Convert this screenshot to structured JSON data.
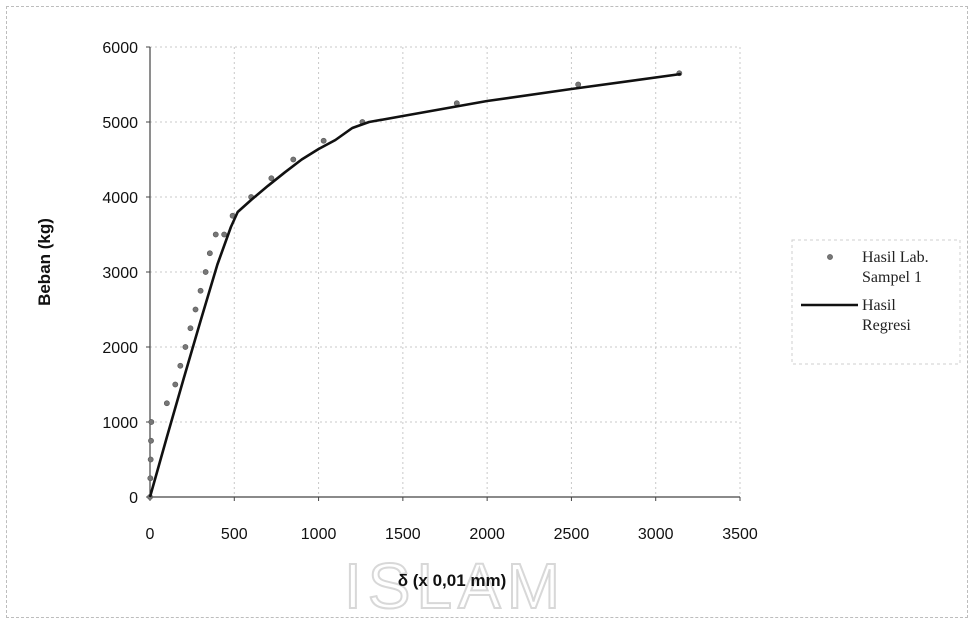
{
  "chart_data": {
    "type": "scatter",
    "title": "",
    "xlabel": "δ (x 0,01 mm)",
    "ylabel": "Beban (kg)",
    "xlim": [
      0,
      3500
    ],
    "ylim": [
      0,
      6000
    ],
    "x_ticks": [
      "0",
      "500",
      "1000",
      "1500",
      "2000",
      "2500",
      "3000",
      "3500"
    ],
    "y_ticks": [
      "0",
      "1000",
      "2000",
      "3000",
      "4000",
      "5000",
      "6000"
    ],
    "grid": true,
    "legend_position": "right",
    "series": [
      {
        "name": "Hasil Lab. Sampel 1",
        "type": "scatter",
        "color": "#777777",
        "x": [
          0,
          2,
          4,
          6,
          8,
          100,
          150,
          180,
          210,
          240,
          270,
          300,
          330,
          355,
          390,
          440,
          490,
          600,
          720,
          850,
          1030,
          1260,
          1820,
          2540,
          3140
        ],
        "y": [
          0,
          250,
          500,
          750,
          1000,
          1250,
          1500,
          1750,
          2000,
          2250,
          2500,
          2750,
          3000,
          3250,
          3500,
          3500,
          3750,
          4000,
          4250,
          4500,
          4750,
          5000,
          5250,
          5500,
          5650
        ]
      },
      {
        "name": "Hasil Regresi",
        "type": "line",
        "color": "#111111",
        "x": [
          0,
          100,
          200,
          300,
          400,
          480,
          520,
          600,
          700,
          800,
          900,
          1000,
          1100,
          1200,
          1300,
          1500,
          2000,
          2500,
          3150
        ],
        "y": [
          0,
          800,
          1580,
          2350,
          3100,
          3600,
          3800,
          3960,
          4150,
          4330,
          4500,
          4640,
          4760,
          4920,
          5000,
          5080,
          5280,
          5440,
          5640
        ]
      }
    ]
  },
  "legend": {
    "items": [
      {
        "lines": [
          "Hasil Lab.",
          "Sampel 1"
        ],
        "marker": "dot"
      },
      {
        "lines": [
          "Hasil",
          "Regresi"
        ],
        "marker": "line"
      }
    ]
  },
  "watermark": {
    "text": "ISLAM"
  },
  "colors": {
    "grid": "#c8c8c8",
    "axis": "#444444",
    "line": "#111111",
    "marker": "#777777"
  }
}
